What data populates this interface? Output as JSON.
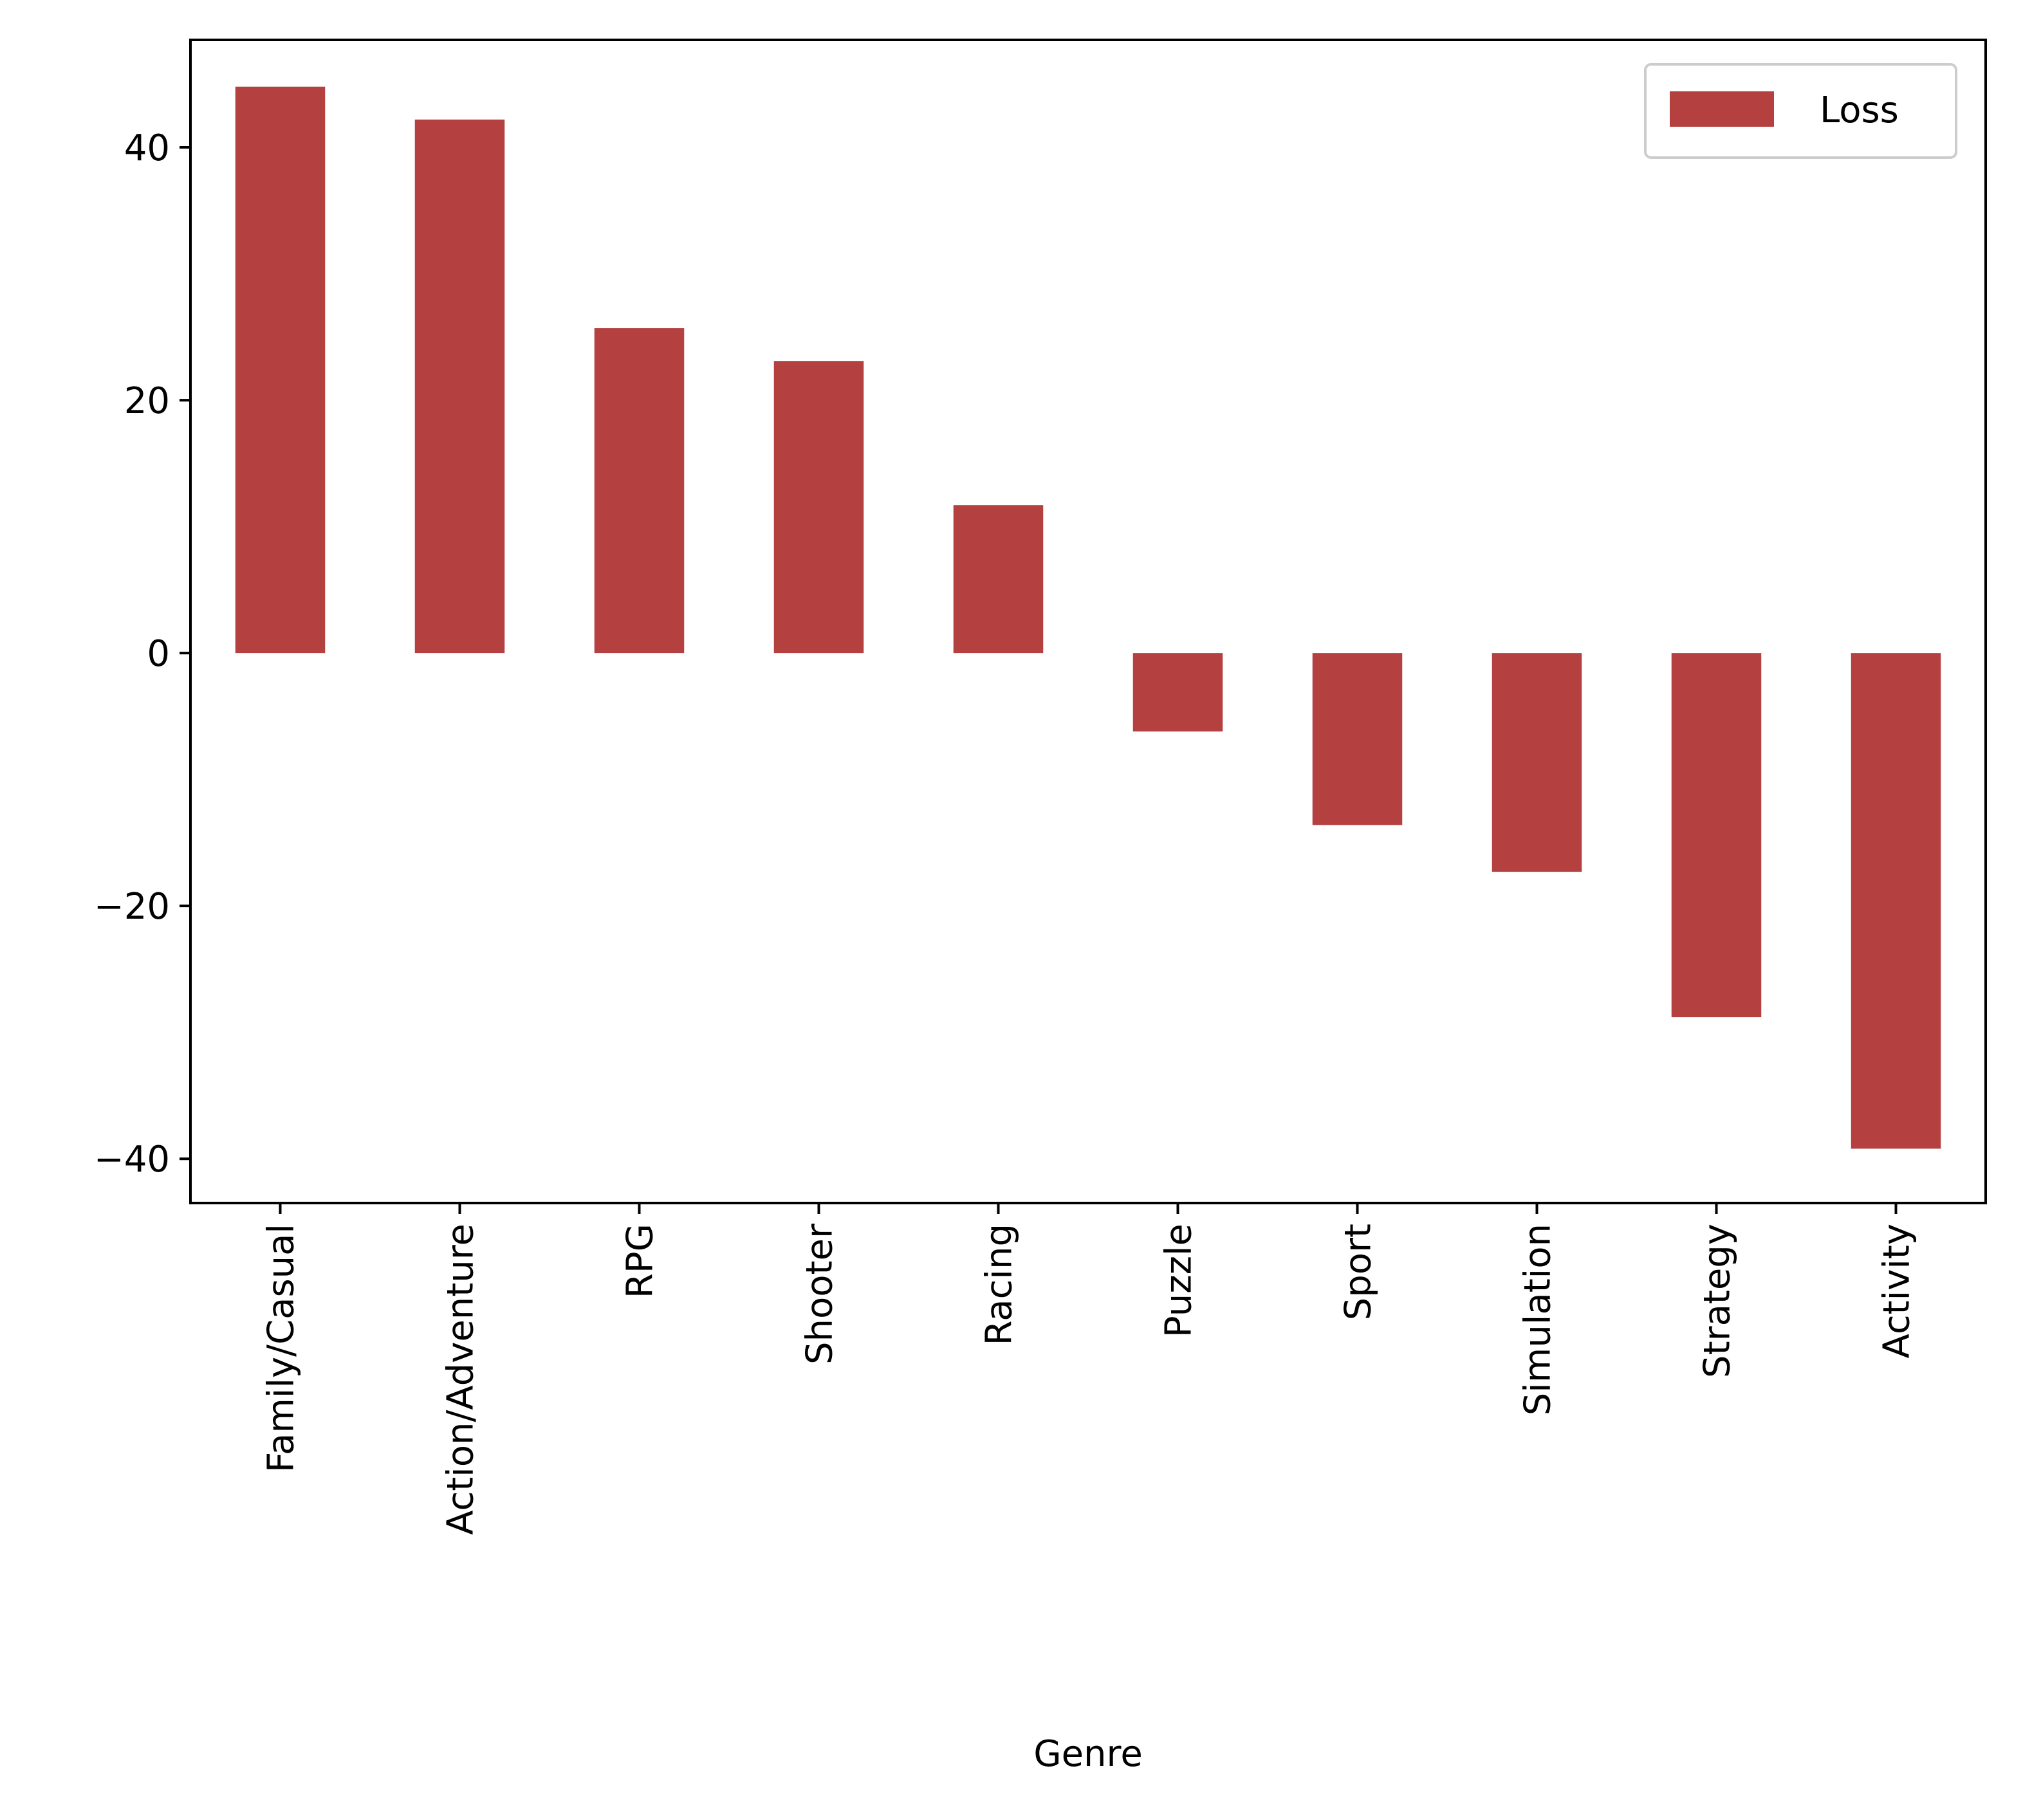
{
  "chart_data": {
    "type": "bar",
    "title": "",
    "xlabel": "Genre",
    "ylabel": "",
    "categories": [
      "Family/Casual",
      "Action/Adventure",
      "RPG",
      "Shooter",
      "Racing",
      "Puzzle",
      "Sport",
      "Simulation",
      "Strategy",
      "Activity"
    ],
    "series": [
      {
        "name": "Loss",
        "color": "#b44040",
        "values": [
          44.8,
          42.2,
          25.7,
          23.1,
          11.7,
          -6.2,
          -13.6,
          -17.3,
          -28.8,
          -39.2
        ]
      }
    ],
    "ylim": [
      -43.5,
      48.5
    ],
    "yticks": [
      -40,
      -20,
      0,
      20,
      40
    ],
    "ytick_labels": [
      "−40",
      "−20",
      "0",
      "20",
      "40"
    ],
    "legend": {
      "position": "top-right",
      "entries": [
        "Loss"
      ]
    },
    "grid": false
  }
}
